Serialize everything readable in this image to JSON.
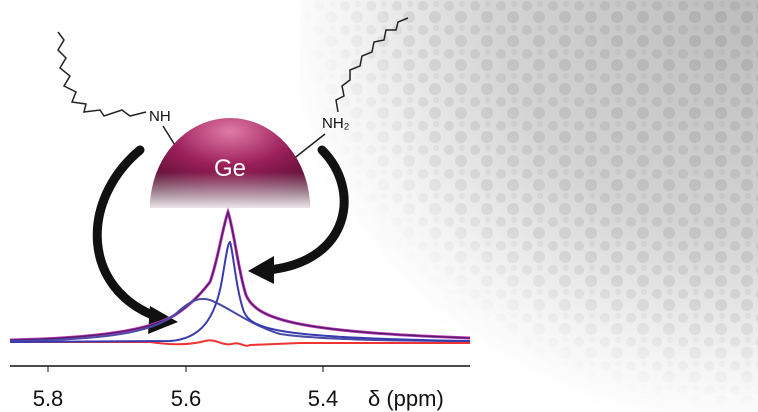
{
  "labels": {
    "amine_left": "NH",
    "amine_right": "NH₂",
    "particle": "Ge"
  },
  "axis": {
    "ticks": [
      "5.8",
      "5.6",
      "5.4"
    ],
    "label": "δ (ppm)"
  }
}
